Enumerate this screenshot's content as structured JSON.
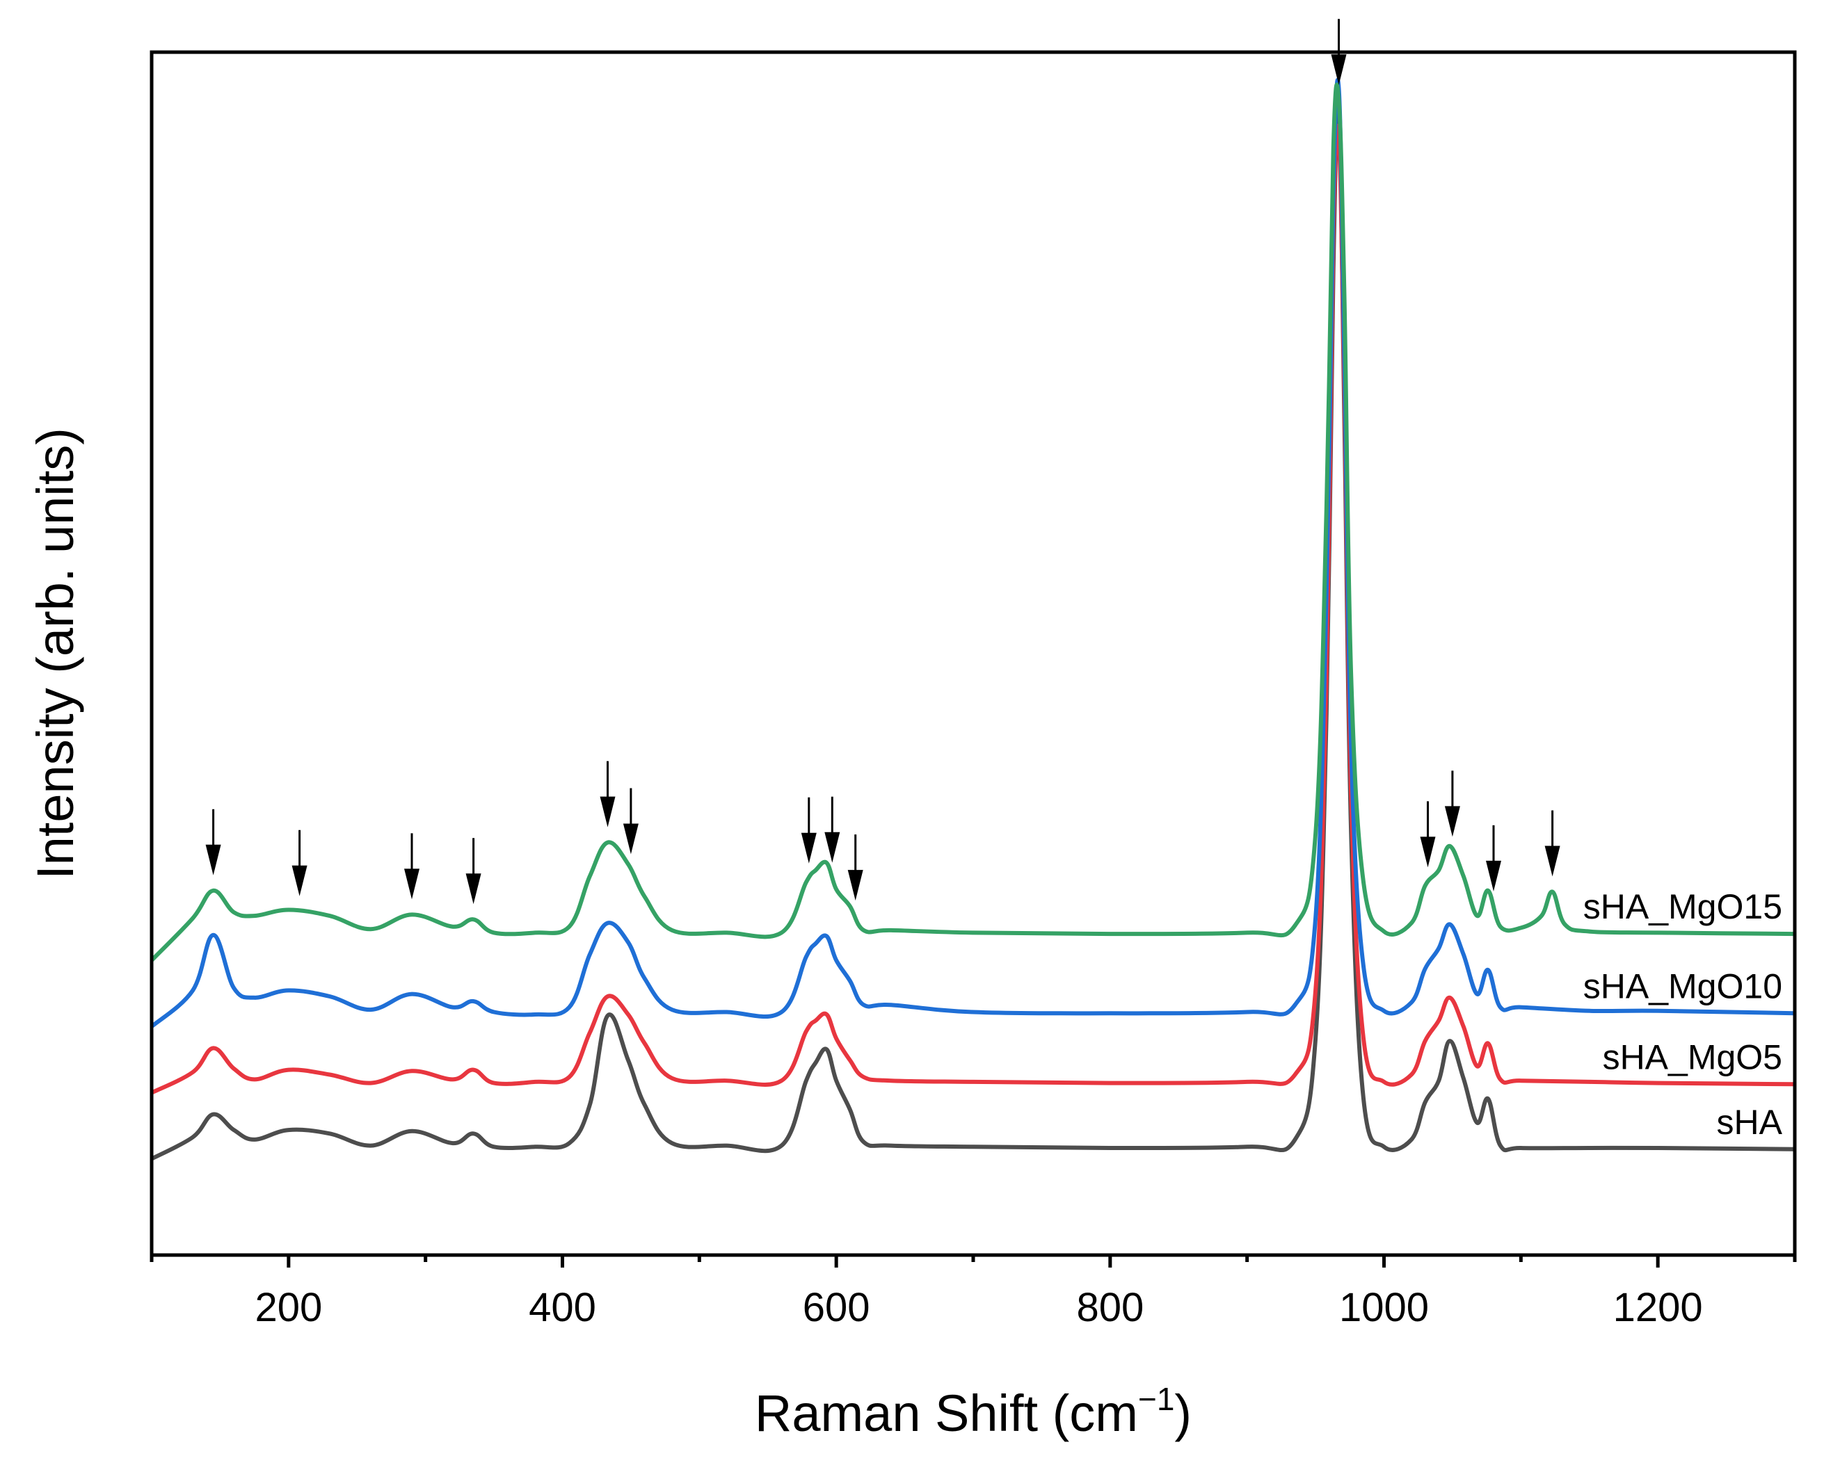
{
  "chart_data": {
    "type": "line",
    "title": "",
    "xlabel": "Raman Shift (cm",
    "xlabel_sup": "−1",
    "xlabel_end": ")",
    "ylabel": "Intensity (arb. units)",
    "xlim": [
      100,
      1300
    ],
    "ylim": [
      0,
      100
    ],
    "x_major_ticks": [
      200,
      400,
      600,
      800,
      1000,
      1200
    ],
    "x_minor_ticks": [
      100,
      300,
      500,
      700,
      900,
      1100,
      1300
    ],
    "y_ticks_shown": false,
    "grid": false,
    "legend": "inline labels at right end of each trace",
    "series": [
      {
        "name": "sHA",
        "color": "#4d4d4d",
        "x": [
          100,
          130,
          145,
          160,
          175,
          200,
          230,
          260,
          290,
          320,
          335,
          350,
          380,
          405,
          420,
          433,
          448,
          460,
          480,
          520,
          560,
          578,
          585,
          593,
          600,
          610,
          620,
          640,
          700,
          800,
          900,
          935,
          950,
          958,
          963,
          967,
          971,
          976,
          985,
          1000,
          1020,
          1030,
          1040,
          1048,
          1058,
          1068,
          1076,
          1085,
          1100,
          1150,
          1200,
          1300
        ],
        "values": [
          8.0,
          9.8,
          11.7,
          10.4,
          9.6,
          10.4,
          10.1,
          9.1,
          10.3,
          9.3,
          10.1,
          9.0,
          9.0,
          9.3,
          12.5,
          19.9,
          16.2,
          12.5,
          9.3,
          9.1,
          9.1,
          14.5,
          16.0,
          17.1,
          14.5,
          12.1,
          9.4,
          9.1,
          9.0,
          8.9,
          9.0,
          9.6,
          18.0,
          45.0,
          82.0,
          95.5,
          70.0,
          35.0,
          13.0,
          9.0,
          9.6,
          12.7,
          14.5,
          17.8,
          14.7,
          11.0,
          13.0,
          9.1,
          8.9,
          8.9,
          8.9,
          8.8
        ]
      },
      {
        "name": "sHA_MgO5",
        "color": "#e8363f",
        "x": [
          100,
          130,
          145,
          160,
          175,
          200,
          230,
          260,
          290,
          320,
          335,
          350,
          380,
          405,
          420,
          433,
          448,
          460,
          480,
          520,
          560,
          578,
          585,
          593,
          600,
          610,
          620,
          640,
          700,
          800,
          900,
          935,
          950,
          958,
          963,
          967,
          971,
          976,
          985,
          1000,
          1020,
          1030,
          1040,
          1048,
          1058,
          1068,
          1076,
          1085,
          1100,
          1150,
          1200,
          1300
        ],
        "values": [
          13.5,
          15.2,
          17.2,
          15.5,
          14.6,
          15.4,
          15.0,
          14.3,
          15.3,
          14.6,
          15.4,
          14.3,
          14.4,
          14.8,
          18.5,
          21.5,
          20.0,
          17.6,
          14.7,
          14.5,
          14.5,
          18.6,
          19.5,
          20.0,
          18.0,
          16.2,
          14.8,
          14.5,
          14.4,
          14.3,
          14.4,
          15.0,
          22.0,
          48.0,
          85.0,
          93.0,
          72.0,
          38.0,
          18.0,
          14.4,
          15.0,
          17.8,
          19.5,
          21.4,
          19.0,
          15.7,
          17.6,
          14.6,
          14.5,
          14.4,
          14.3,
          14.2
        ]
      },
      {
        "name": "sHA_MgO10",
        "color": "#1f6fd6",
        "x": [
          100,
          130,
          145,
          160,
          175,
          200,
          230,
          260,
          290,
          320,
          335,
          350,
          380,
          405,
          420,
          433,
          448,
          460,
          480,
          520,
          560,
          578,
          585,
          593,
          600,
          610,
          620,
          640,
          700,
          800,
          900,
          935,
          950,
          958,
          963,
          967,
          971,
          976,
          985,
          1000,
          1020,
          1030,
          1040,
          1048,
          1058,
          1068,
          1076,
          1085,
          1100,
          1150,
          1200,
          1300
        ],
        "values": [
          19.0,
          22.0,
          26.6,
          22.2,
          21.4,
          22.0,
          21.5,
          20.4,
          21.7,
          20.6,
          21.1,
          20.2,
          20.0,
          20.6,
          25.0,
          27.6,
          26.0,
          23.0,
          20.4,
          20.2,
          20.2,
          24.8,
          25.9,
          26.5,
          24.5,
          22.8,
          20.8,
          20.8,
          20.2,
          20.1,
          20.2,
          20.8,
          28.0,
          55.0,
          88.0,
          97.0,
          75.0,
          42.0,
          24.0,
          20.3,
          21.0,
          23.8,
          25.5,
          27.5,
          25.0,
          21.7,
          23.7,
          20.6,
          20.6,
          20.3,
          20.3,
          20.1
        ]
      },
      {
        "name": "sHA_MgO15",
        "color": "#35a265",
        "x": [
          100,
          130,
          145,
          160,
          175,
          200,
          230,
          260,
          290,
          320,
          335,
          350,
          380,
          405,
          420,
          433,
          448,
          460,
          480,
          520,
          560,
          578,
          585,
          593,
          600,
          610,
          620,
          640,
          700,
          800,
          900,
          935,
          950,
          958,
          963,
          967,
          971,
          976,
          985,
          1000,
          1020,
          1030,
          1040,
          1048,
          1058,
          1068,
          1076,
          1085,
          1100,
          1115,
          1123,
          1132,
          1150,
          1200,
          1300
        ],
        "values": [
          24.5,
          28.0,
          30.3,
          28.5,
          28.2,
          28.7,
          28.2,
          27.1,
          28.3,
          27.3,
          27.9,
          26.8,
          26.8,
          27.3,
          31.5,
          34.3,
          32.5,
          29.8,
          27.0,
          26.8,
          26.8,
          31.0,
          32.0,
          32.6,
          30.4,
          29.0,
          27.0,
          27.0,
          26.8,
          26.7,
          26.8,
          27.4,
          35.0,
          62.0,
          92.0,
          96.0,
          80.0,
          48.0,
          31.0,
          26.9,
          27.6,
          30.7,
          32.0,
          34.0,
          31.5,
          28.2,
          30.3,
          27.3,
          27.2,
          28.2,
          30.2,
          27.5,
          26.9,
          26.8,
          26.7
        ]
      }
    ],
    "annotations": {
      "type": "down-arrows marking peak positions on top trace",
      "peak_positions": [
        145,
        208,
        290,
        335,
        433,
        450,
        580,
        597,
        614,
        967,
        1032,
        1050,
        1080,
        1123
      ]
    }
  }
}
